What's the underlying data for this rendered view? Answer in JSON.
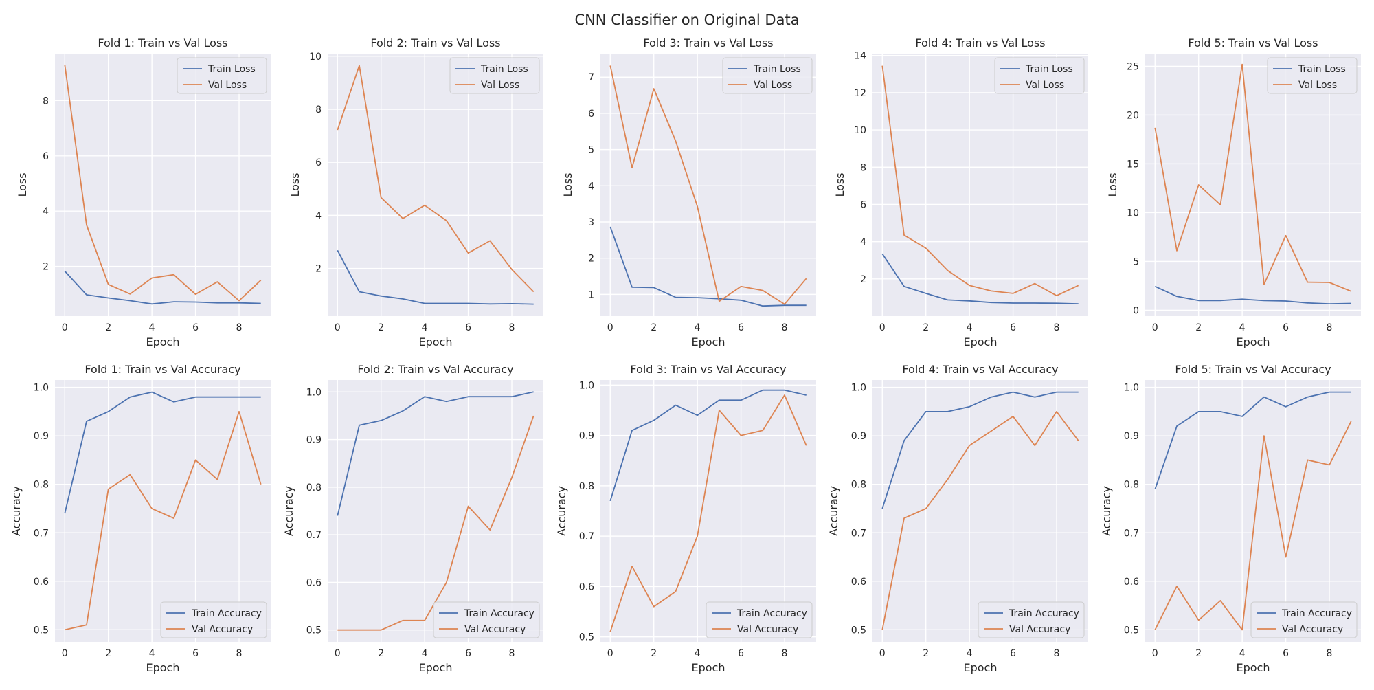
{
  "figure": {
    "title": "CNN Classifier on Original Data"
  },
  "colors": {
    "train": "#4C72B0",
    "val": "#DD8452",
    "plot_bg": "#EAEAF2",
    "grid": "#FFFFFF"
  },
  "chart_data": [
    {
      "type": "line",
      "title": "Fold 1: Train vs Val Loss",
      "xlabel": "Epoch",
      "ylabel": "Loss",
      "xlim": [
        -0.45,
        9.45
      ],
      "ylim": [
        0.2,
        9.7
      ],
      "xticks": [
        0,
        2,
        4,
        6,
        8
      ],
      "yticks": [
        2,
        4,
        6,
        8
      ],
      "grid": true,
      "legend": "top-right",
      "x": [
        0,
        1,
        2,
        3,
        4,
        5,
        6,
        7,
        8,
        9
      ],
      "series": [
        {
          "name": "Train Loss",
          "values": [
            1.83,
            0.97,
            0.86,
            0.76,
            0.64,
            0.72,
            0.71,
            0.68,
            0.68,
            0.66
          ]
        },
        {
          "name": "Val Loss",
          "values": [
            9.3,
            3.5,
            1.35,
            1.0,
            1.58,
            1.7,
            0.99,
            1.44,
            0.76,
            1.5
          ]
        }
      ]
    },
    {
      "type": "line",
      "title": "Fold 2: Train vs Val Loss",
      "xlabel": "Epoch",
      "ylabel": "Loss",
      "xlim": [
        -0.45,
        9.45
      ],
      "ylim": [
        0.2,
        10.1
      ],
      "xticks": [
        0,
        2,
        4,
        6,
        8
      ],
      "yticks": [
        2,
        4,
        6,
        8,
        10
      ],
      "grid": true,
      "legend": "top-right",
      "x": [
        0,
        1,
        2,
        3,
        4,
        5,
        6,
        7,
        8,
        9
      ],
      "series": [
        {
          "name": "Train Loss",
          "values": [
            2.68,
            1.12,
            0.96,
            0.85,
            0.68,
            0.68,
            0.68,
            0.66,
            0.67,
            0.65
          ]
        },
        {
          "name": "Val Loss",
          "values": [
            7.22,
            9.65,
            4.67,
            3.88,
            4.38,
            3.8,
            2.58,
            3.04,
            1.96,
            1.12
          ]
        }
      ]
    },
    {
      "type": "line",
      "title": "Fold 3: Train vs Val Loss",
      "xlabel": "Epoch",
      "ylabel": "Loss",
      "xlim": [
        -0.45,
        9.45
      ],
      "ylim": [
        0.4,
        7.65
      ],
      "xticks": [
        0,
        2,
        4,
        6,
        8
      ],
      "yticks": [
        1,
        2,
        3,
        4,
        5,
        6,
        7
      ],
      "grid": true,
      "legend": "top-right",
      "x": [
        0,
        1,
        2,
        3,
        4,
        5,
        6,
        7,
        8,
        9
      ],
      "series": [
        {
          "name": "Train Loss",
          "values": [
            2.87,
            1.2,
            1.19,
            0.92,
            0.91,
            0.88,
            0.84,
            0.68,
            0.7,
            0.7
          ]
        },
        {
          "name": "Val Loss",
          "values": [
            7.32,
            4.5,
            6.68,
            5.24,
            3.43,
            0.81,
            1.22,
            1.11,
            0.73,
            1.44
          ]
        }
      ]
    },
    {
      "type": "line",
      "title": "Fold 4: Train vs Val Loss",
      "xlabel": "Epoch",
      "ylabel": "Loss",
      "xlim": [
        -0.45,
        9.45
      ],
      "ylim": [
        0.0,
        14.1
      ],
      "xticks": [
        0,
        2,
        4,
        6,
        8
      ],
      "yticks": [
        2,
        4,
        6,
        8,
        10,
        12,
        14
      ],
      "grid": true,
      "legend": "top-right",
      "x": [
        0,
        1,
        2,
        3,
        4,
        5,
        6,
        7,
        8,
        9
      ],
      "series": [
        {
          "name": "Train Loss",
          "values": [
            3.35,
            1.6,
            1.22,
            0.87,
            0.82,
            0.73,
            0.7,
            0.7,
            0.69,
            0.66
          ]
        },
        {
          "name": "Val Loss",
          "values": [
            13.45,
            4.35,
            3.65,
            2.45,
            1.65,
            1.35,
            1.22,
            1.75,
            1.1,
            1.65
          ]
        }
      ]
    },
    {
      "type": "line",
      "title": "Fold 5: Train vs Val Loss",
      "xlabel": "Epoch",
      "ylabel": "Loss",
      "xlim": [
        -0.45,
        9.45
      ],
      "ylim": [
        -0.6,
        26.3
      ],
      "xticks": [
        0,
        2,
        4,
        6,
        8
      ],
      "yticks": [
        0,
        5,
        10,
        15,
        20,
        25
      ],
      "grid": true,
      "legend": "top-right",
      "x": [
        0,
        1,
        2,
        3,
        4,
        5,
        6,
        7,
        8,
        9
      ],
      "series": [
        {
          "name": "Train Loss",
          "values": [
            2.45,
            1.42,
            1.0,
            1.0,
            1.14,
            0.99,
            0.95,
            0.75,
            0.66,
            0.7
          ]
        },
        {
          "name": "Val Loss",
          "values": [
            18.7,
            6.1,
            12.85,
            10.8,
            25.2,
            2.65,
            7.65,
            2.88,
            2.85,
            1.95
          ]
        }
      ]
    },
    {
      "type": "line",
      "title": "Fold 1: Train vs Val Accuracy",
      "xlabel": "Epoch",
      "ylabel": "Accuracy",
      "xlim": [
        -0.45,
        9.45
      ],
      "ylim": [
        0.475,
        1.015
      ],
      "xticks": [
        0,
        2,
        4,
        6,
        8
      ],
      "yticks": [
        0.5,
        0.6,
        0.7,
        0.8,
        0.9,
        1.0
      ],
      "grid": true,
      "legend": "bottom-right",
      "x": [
        0,
        1,
        2,
        3,
        4,
        5,
        6,
        7,
        8,
        9
      ],
      "series": [
        {
          "name": "Train Accuracy",
          "values": [
            0.74,
            0.93,
            0.95,
            0.98,
            0.99,
            0.97,
            0.98,
            0.98,
            0.98,
            0.98
          ]
        },
        {
          "name": "Val Accuracy",
          "values": [
            0.5,
            0.51,
            0.79,
            0.82,
            0.75,
            0.73,
            0.85,
            0.81,
            0.95,
            0.8
          ]
        }
      ]
    },
    {
      "type": "line",
      "title": "Fold 2: Train vs Val Accuracy",
      "xlabel": "Epoch",
      "ylabel": "Accuracy",
      "xlim": [
        -0.45,
        9.45
      ],
      "ylim": [
        0.475,
        1.025
      ],
      "xticks": [
        0,
        2,
        4,
        6,
        8
      ],
      "yticks": [
        0.5,
        0.6,
        0.7,
        0.8,
        0.9,
        1.0
      ],
      "grid": true,
      "legend": "bottom-right",
      "x": [
        0,
        1,
        2,
        3,
        4,
        5,
        6,
        7,
        8,
        9
      ],
      "series": [
        {
          "name": "Train Accuracy",
          "values": [
            0.74,
            0.93,
            0.94,
            0.96,
            0.99,
            0.98,
            0.99,
            0.99,
            0.99,
            1.0
          ]
        },
        {
          "name": "Val Accuracy",
          "values": [
            0.5,
            0.5,
            0.5,
            0.52,
            0.52,
            0.6,
            0.76,
            0.71,
            0.82,
            0.95
          ]
        }
      ]
    },
    {
      "type": "line",
      "title": "Fold 3: Train vs Val Accuracy",
      "xlabel": "Epoch",
      "ylabel": "Accuracy",
      "xlim": [
        -0.45,
        9.45
      ],
      "ylim": [
        0.49,
        1.01
      ],
      "xticks": [
        0,
        2,
        4,
        6,
        8
      ],
      "yticks": [
        0.5,
        0.6,
        0.7,
        0.8,
        0.9,
        1.0
      ],
      "grid": true,
      "legend": "bottom-right",
      "x": [
        0,
        1,
        2,
        3,
        4,
        5,
        6,
        7,
        8,
        9
      ],
      "series": [
        {
          "name": "Train Accuracy",
          "values": [
            0.77,
            0.91,
            0.93,
            0.96,
            0.94,
            0.97,
            0.97,
            0.99,
            0.99,
            0.98
          ]
        },
        {
          "name": "Val Accuracy",
          "values": [
            0.51,
            0.64,
            0.56,
            0.59,
            0.7,
            0.95,
            0.9,
            0.91,
            0.98,
            0.88
          ]
        }
      ]
    },
    {
      "type": "line",
      "title": "Fold 4: Train vs Val Accuracy",
      "xlabel": "Epoch",
      "ylabel": "Accuracy",
      "xlim": [
        -0.45,
        9.45
      ],
      "ylim": [
        0.475,
        1.015
      ],
      "xticks": [
        0,
        2,
        4,
        6,
        8
      ],
      "yticks": [
        0.5,
        0.6,
        0.7,
        0.8,
        0.9,
        1.0
      ],
      "grid": true,
      "legend": "bottom-right",
      "x": [
        0,
        1,
        2,
        3,
        4,
        5,
        6,
        7,
        8,
        9
      ],
      "series": [
        {
          "name": "Train Accuracy",
          "values": [
            0.75,
            0.89,
            0.95,
            0.95,
            0.96,
            0.98,
            0.99,
            0.98,
            0.99,
            0.99
          ]
        },
        {
          "name": "Val Accuracy",
          "values": [
            0.5,
            0.73,
            0.75,
            0.81,
            0.88,
            0.91,
            0.94,
            0.88,
            0.95,
            0.89
          ]
        }
      ]
    },
    {
      "type": "line",
      "title": "Fold 5: Train vs Val Accuracy",
      "xlabel": "Epoch",
      "ylabel": "Accuracy",
      "xlim": [
        -0.45,
        9.45
      ],
      "ylim": [
        0.475,
        1.015
      ],
      "xticks": [
        0,
        2,
        4,
        6,
        8
      ],
      "yticks": [
        0.5,
        0.6,
        0.7,
        0.8,
        0.9,
        1.0
      ],
      "grid": true,
      "legend": "bottom-right",
      "x": [
        0,
        1,
        2,
        3,
        4,
        5,
        6,
        7,
        8,
        9
      ],
      "series": [
        {
          "name": "Train Accuracy",
          "values": [
            0.79,
            0.92,
            0.95,
            0.95,
            0.94,
            0.98,
            0.96,
            0.98,
            0.99,
            0.99
          ]
        },
        {
          "name": "Val Accuracy",
          "values": [
            0.5,
            0.59,
            0.52,
            0.56,
            0.5,
            0.9,
            0.65,
            0.85,
            0.84,
            0.93
          ]
        }
      ]
    }
  ]
}
